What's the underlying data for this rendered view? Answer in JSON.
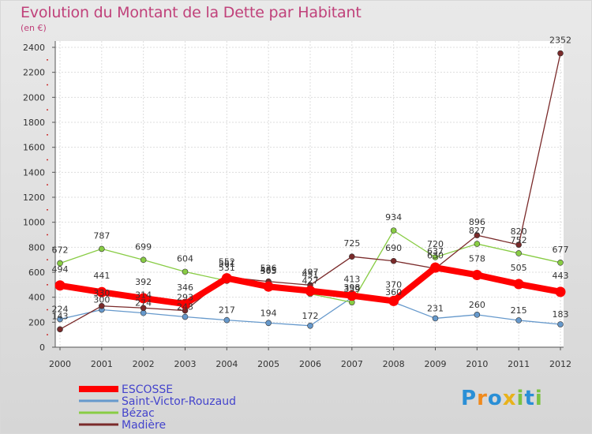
{
  "title": "Evolution du Montant de la Dette par Habitant",
  "subtitle": "(en €)",
  "logo": {
    "letters": [
      "P",
      "r",
      "o",
      "x",
      "i",
      "t",
      "i"
    ],
    "colors": [
      "#2a8fd6",
      "#f08a1c",
      "#2a8fd6",
      "#e8b21a",
      "#7cc242",
      "#2a8fd6",
      "#7cc242"
    ]
  },
  "chart_data": {
    "type": "line",
    "x": [
      "2000",
      "2001",
      "2002",
      "2003",
      "2004",
      "2005",
      "2006",
      "2007",
      "2008",
      "2009",
      "2010",
      "2011",
      "2012"
    ],
    "ylim": [
      0,
      2400
    ],
    "yticks": [
      "0",
      "200",
      "400",
      "600",
      "800",
      "1000",
      "1200",
      "1400",
      "1600",
      "1800",
      "2000",
      "2200",
      "2400"
    ],
    "grid": true,
    "legend_position": "bottom-left",
    "series": [
      {
        "name": "ESCOSSE",
        "color": "#ff0000",
        "values": [
          494,
          441,
          392,
          346,
          552,
          485,
          451,
          413,
          370,
          637,
          578,
          505,
          443
        ],
        "labels": [
          "494",
          "441",
          "392",
          "346",
          "552",
          "485",
          "451",
          "413",
          "370",
          "637",
          "578",
          "505",
          "443"
        ]
      },
      {
        "name": "Saint-Victor-Rouzaud",
        "color": "#6699cc",
        "values": [
          224,
          300,
          274,
          243,
          217,
          194,
          172,
          398,
          360,
          231,
          260,
          215,
          183
        ],
        "labels": [
          "224",
          "300",
          "274",
          "243",
          "217",
          "194",
          "172",
          "398",
          "360",
          "231",
          "260",
          "215",
          "183"
        ]
      },
      {
        "name": "Bézac",
        "color": "#88cc44",
        "values": [
          672,
          787,
          699,
          604,
          531,
          505,
          427,
          359,
          934,
          720,
          827,
          752,
          677
        ],
        "labels": [
          "672",
          "787",
          "699",
          "604",
          "531",
          "505",
          "427",
          "359",
          "934",
          "720",
          "827",
          "752",
          "677"
        ]
      },
      {
        "name": "Madière",
        "color": "#7a2a2a",
        "values": [
          143,
          330,
          314,
          293,
          561,
          526,
          497,
          725,
          690,
          630,
          896,
          820,
          2352
        ],
        "labels": [
          "143",
          "330",
          "314",
          "293",
          "561",
          "526",
          "497",
          "725",
          "690",
          "630",
          "896",
          "820",
          "2352"
        ]
      }
    ]
  }
}
